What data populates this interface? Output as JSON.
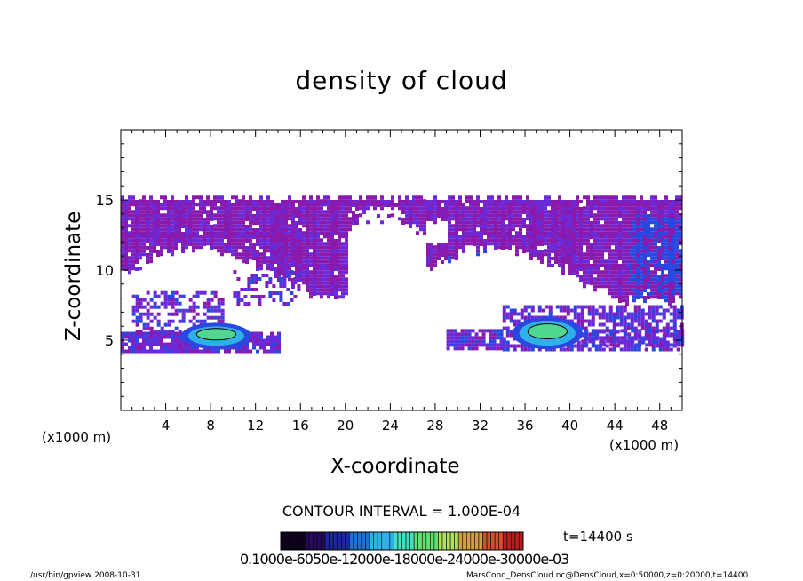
{
  "chart_data": {
    "type": "heatmap",
    "title": "density of cloud",
    "xlabel": "X-coordinate",
    "ylabel": "Z-coordinate",
    "x_unit": "(x1000 m)",
    "z_unit": "(x1000 m)",
    "xlim": [
      0,
      50
    ],
    "ylim": [
      0,
      20
    ],
    "x_ticks": [
      4,
      8,
      12,
      16,
      20,
      24,
      28,
      32,
      36,
      40,
      44,
      48
    ],
    "y_ticks": [
      5,
      10,
      15
    ],
    "contour_interval": "CONTOUR INTERVAL = 1.000E-04",
    "time_label": "t=14400 s",
    "colorbar_labels": "0.1000e-6050e-12000e-18000e-24000e-30000e-03",
    "colors": {
      "purple": "#8a1aae",
      "violet": "#6a2ad8",
      "blue": "#2848e0",
      "cyan": "#30b0e8",
      "green": "#50d890",
      "dark_blue": "#1a2aa8"
    },
    "cloud_layers": [
      {
        "name": "upper purple layer",
        "x_range": [
          0,
          50
        ],
        "z_range": [
          9.5,
          15.5
        ]
      },
      {
        "name": "lower cloud band left",
        "x_range": [
          0,
          14
        ],
        "z_range": [
          4,
          7.5
        ]
      },
      {
        "name": "lower cloud band right",
        "x_range": [
          29,
          50
        ],
        "z_range": [
          4,
          7.5
        ]
      },
      {
        "name": "high-density patch left",
        "x_range": [
          6,
          11
        ],
        "z_range": [
          4.8,
          5.8
        ],
        "max": 0.0001
      },
      {
        "name": "high-density patch right",
        "x_range": [
          35.5,
          40.5
        ],
        "z_range": [
          4.8,
          6.2
        ],
        "max": 0.00015
      }
    ]
  },
  "footer": {
    "left": "/usr/bin/gpview   2008-10-31",
    "right": "MarsCond_DensCloud.nc@DensCloud,x=0:50000,z=0:20000,t=14400"
  }
}
